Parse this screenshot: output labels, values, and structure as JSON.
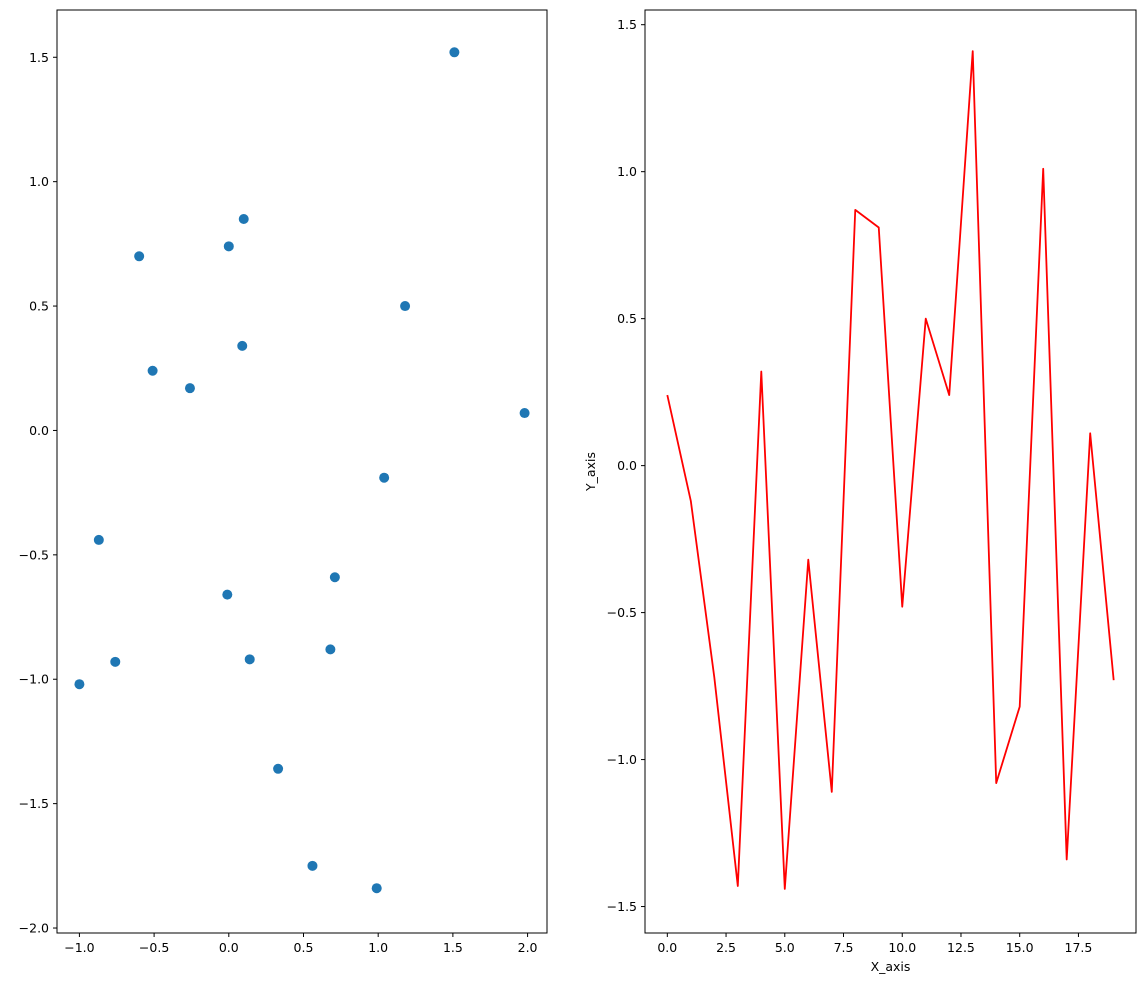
{
  "chart_data": [
    {
      "type": "scatter",
      "title": "",
      "xlabel": "",
      "ylabel": "",
      "xlim": [
        -1.15,
        2.13
      ],
      "ylim": [
        -2.02,
        1.69
      ],
      "xticks": [
        -1.0,
        -0.5,
        0.0,
        0.5,
        1.0,
        1.5,
        2.0
      ],
      "xtick_labels": [
        "−1.0",
        "−0.5",
        "0.0",
        "0.5",
        "1.0",
        "1.5",
        "2.0"
      ],
      "yticks": [
        -2.0,
        -1.5,
        -1.0,
        -0.5,
        0.0,
        0.5,
        1.0,
        1.5
      ],
      "ytick_labels": [
        "−2.0",
        "−1.5",
        "−1.0",
        "−0.5",
        "0.0",
        "0.5",
        "1.0",
        "1.5"
      ],
      "grid": false,
      "marker_color": "#1f77b4",
      "points": [
        {
          "x": 1.51,
          "y": 1.52
        },
        {
          "x": 0.1,
          "y": 0.85
        },
        {
          "x": 0.0,
          "y": 0.74
        },
        {
          "x": -0.6,
          "y": 0.7
        },
        {
          "x": 1.18,
          "y": 0.5
        },
        {
          "x": 0.09,
          "y": 0.34
        },
        {
          "x": -0.51,
          "y": 0.24
        },
        {
          "x": -0.26,
          "y": 0.17
        },
        {
          "x": 1.98,
          "y": 0.07
        },
        {
          "x": 1.04,
          "y": -0.19
        },
        {
          "x": -0.87,
          "y": -0.44
        },
        {
          "x": 0.71,
          "y": -0.59
        },
        {
          "x": -0.01,
          "y": -0.66
        },
        {
          "x": 0.68,
          "y": -0.88
        },
        {
          "x": 0.14,
          "y": -0.92
        },
        {
          "x": -0.76,
          "y": -0.93
        },
        {
          "x": -1.0,
          "y": -1.02
        },
        {
          "x": 0.33,
          "y": -1.36
        },
        {
          "x": 0.56,
          "y": -1.75
        },
        {
          "x": 0.99,
          "y": -1.84
        }
      ]
    },
    {
      "type": "line",
      "title": "",
      "xlabel": "X_axis",
      "ylabel": "Y_axis",
      "xlim": [
        -0.95,
        19.95
      ],
      "ylim": [
        -1.59,
        1.55
      ],
      "xticks": [
        0.0,
        2.5,
        5.0,
        7.5,
        10.0,
        12.5,
        15.0,
        17.5
      ],
      "xtick_labels": [
        "0.0",
        "2.5",
        "5.0",
        "7.5",
        "10.0",
        "12.5",
        "15.0",
        "17.5"
      ],
      "yticks": [
        -1.5,
        -1.0,
        -0.5,
        0.0,
        0.5,
        1.0,
        1.5
      ],
      "ytick_labels": [
        "−1.5",
        "−1.0",
        "−0.5",
        "0.0",
        "0.5",
        "1.0",
        "1.5"
      ],
      "grid": false,
      "line_color": "#ff0000",
      "x": [
        0,
        1,
        2,
        3,
        4,
        5,
        6,
        7,
        8,
        9,
        10,
        11,
        12,
        13,
        14,
        15,
        16,
        17,
        18,
        19
      ],
      "y": [
        0.24,
        -0.12,
        -0.72,
        -1.43,
        0.32,
        -1.44,
        -0.32,
        -1.11,
        0.87,
        0.81,
        -0.48,
        0.5,
        0.24,
        1.41,
        -1.08,
        -0.82,
        1.01,
        -1.34,
        0.11,
        -0.73
      ]
    }
  ]
}
